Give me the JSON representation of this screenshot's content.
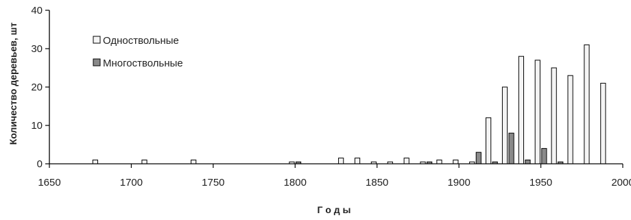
{
  "chart_data": {
    "type": "bar",
    "xlabel": "Г о д ы",
    "ylabel": "Количество деревьев, шт",
    "xlim": [
      1650,
      2000
    ],
    "ylim": [
      0,
      40
    ],
    "x_ticks": [
      "1650",
      "1700",
      "1750",
      "1800",
      "1850",
      "1900",
      "1950",
      "2000"
    ],
    "y_ticks": [
      "0",
      "10",
      "20",
      "30",
      "40"
    ],
    "grid": false,
    "legend_position": "top-left",
    "series": [
      {
        "name": "Одноствольные",
        "color": "#f4f4f4",
        "points": [
          {
            "x": 1678,
            "y": 1
          },
          {
            "x": 1708,
            "y": 1
          },
          {
            "x": 1738,
            "y": 1
          },
          {
            "x": 1798,
            "y": 0.5
          },
          {
            "x": 1828,
            "y": 1.5
          },
          {
            "x": 1838,
            "y": 1.5
          },
          {
            "x": 1848,
            "y": 0.5
          },
          {
            "x": 1858,
            "y": 0.5
          },
          {
            "x": 1868,
            "y": 1.5
          },
          {
            "x": 1878,
            "y": 0.5
          },
          {
            "x": 1888,
            "y": 1
          },
          {
            "x": 1898,
            "y": 1
          },
          {
            "x": 1908,
            "y": 0.5
          },
          {
            "x": 1918,
            "y": 12
          },
          {
            "x": 1928,
            "y": 20
          },
          {
            "x": 1938,
            "y": 28
          },
          {
            "x": 1948,
            "y": 27
          },
          {
            "x": 1958,
            "y": 25
          },
          {
            "x": 1968,
            "y": 23
          },
          {
            "x": 1978,
            "y": 31
          },
          {
            "x": 1988,
            "y": 21
          }
        ]
      },
      {
        "name": "Многоствольные",
        "color": "#8a8a8a",
        "points": [
          {
            "x": 1802,
            "y": 0.5
          },
          {
            "x": 1882,
            "y": 0.5
          },
          {
            "x": 1912,
            "y": 3
          },
          {
            "x": 1922,
            "y": 0.5
          },
          {
            "x": 1932,
            "y": 8
          },
          {
            "x": 1942,
            "y": 1
          },
          {
            "x": 1952,
            "y": 4
          },
          {
            "x": 1962,
            "y": 0.5
          }
        ]
      }
    ]
  }
}
